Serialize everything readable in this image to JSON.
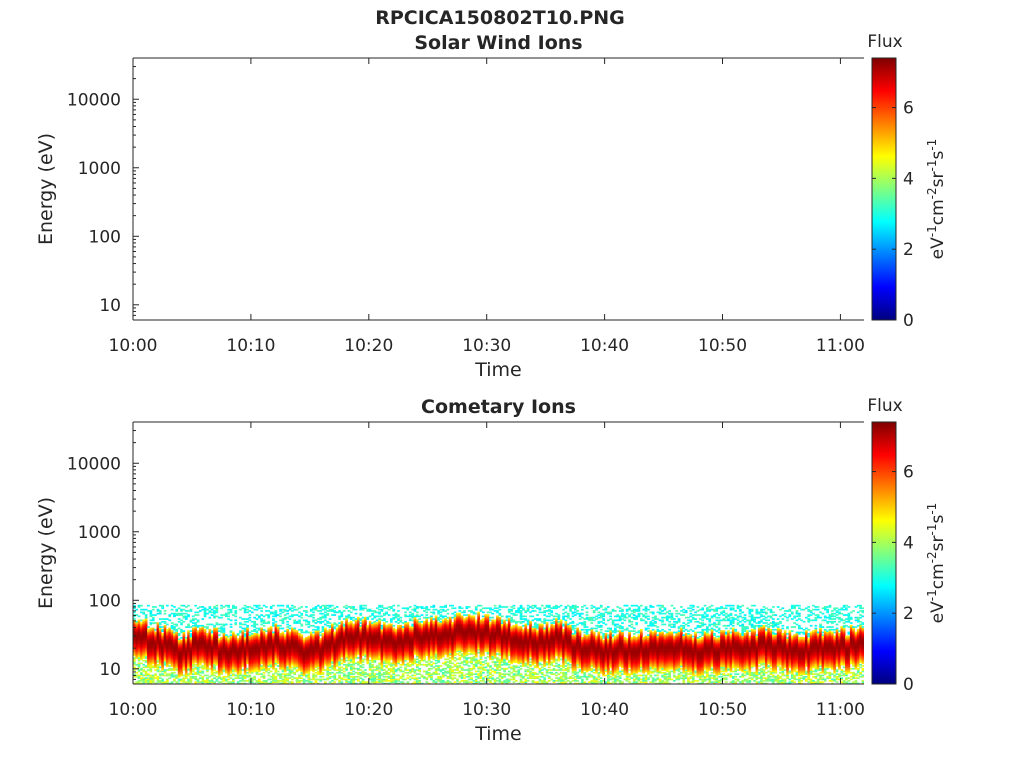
{
  "figure": {
    "title": "RPCICA150802T10.PNG"
  },
  "colors": {
    "axis": "#262626",
    "colormap": [
      "#00007f",
      "#0000ff",
      "#007fff",
      "#00ffff",
      "#7fff7f",
      "#ffff00",
      "#ff7f00",
      "#ff0000",
      "#7f0000"
    ]
  },
  "chart_data": [
    {
      "type": "heatmap",
      "title": "Solar Wind Ions",
      "xlabel": "Time",
      "ylabel": "Energy (eV)",
      "y_scale": "log",
      "xlim": [
        "10:00",
        "11:02"
      ],
      "ylim": [
        6,
        40000
      ],
      "x_ticks": [
        "10:00",
        "10:10",
        "10:20",
        "10:30",
        "10:40",
        "10:50",
        "11:00"
      ],
      "y_ticks": [
        "10",
        "100",
        "1000",
        "10000"
      ],
      "colorbar": {
        "label": "Flux",
        "units_base": "eV",
        "units_parts": [
          "cm",
          "sr",
          "s"
        ],
        "units_exp": "-1",
        "units_exp_cm": "-2",
        "range": [
          0,
          7.4
        ],
        "ticks": [
          "0",
          "2",
          "4",
          "6"
        ]
      },
      "values": []
    },
    {
      "type": "heatmap",
      "title": "Cometary Ions",
      "xlabel": "Time",
      "ylabel": "Energy (eV)",
      "y_scale": "log",
      "xlim": [
        "10:00",
        "11:02"
      ],
      "ylim": [
        6,
        40000
      ],
      "x_ticks": [
        "10:00",
        "10:10",
        "10:20",
        "10:30",
        "10:40",
        "10:50",
        "11:00"
      ],
      "y_ticks": [
        "10",
        "100",
        "1000",
        "10000"
      ],
      "colorbar": {
        "label": "Flux",
        "units_base": "eV",
        "units_parts": [
          "cm",
          "sr",
          "s"
        ],
        "units_exp": "-1",
        "units_exp_cm": "-2",
        "range": [
          0,
          7.4
        ],
        "ticks": [
          "0",
          "2",
          "4",
          "6"
        ]
      },
      "peak_energy_eV": [
        [
          0,
          30
        ],
        [
          2,
          25
        ],
        [
          4,
          18
        ],
        [
          6,
          24
        ],
        [
          8,
          17
        ],
        [
          10,
          22
        ],
        [
          12,
          24
        ],
        [
          14,
          19
        ],
        [
          16,
          20
        ],
        [
          18,
          28
        ],
        [
          20,
          30
        ],
        [
          22,
          24
        ],
        [
          24,
          30
        ],
        [
          26,
          33
        ],
        [
          28,
          35
        ],
        [
          30,
          34
        ],
        [
          32,
          28
        ],
        [
          34,
          25
        ],
        [
          36,
          28
        ],
        [
          38,
          20
        ],
        [
          40,
          19
        ],
        [
          42,
          20
        ],
        [
          44,
          21
        ],
        [
          46,
          22
        ],
        [
          48,
          18
        ],
        [
          50,
          20
        ],
        [
          52,
          21
        ],
        [
          54,
          22
        ],
        [
          56,
          19
        ],
        [
          58,
          20
        ],
        [
          60,
          21
        ],
        [
          62,
          24
        ]
      ]
    }
  ]
}
